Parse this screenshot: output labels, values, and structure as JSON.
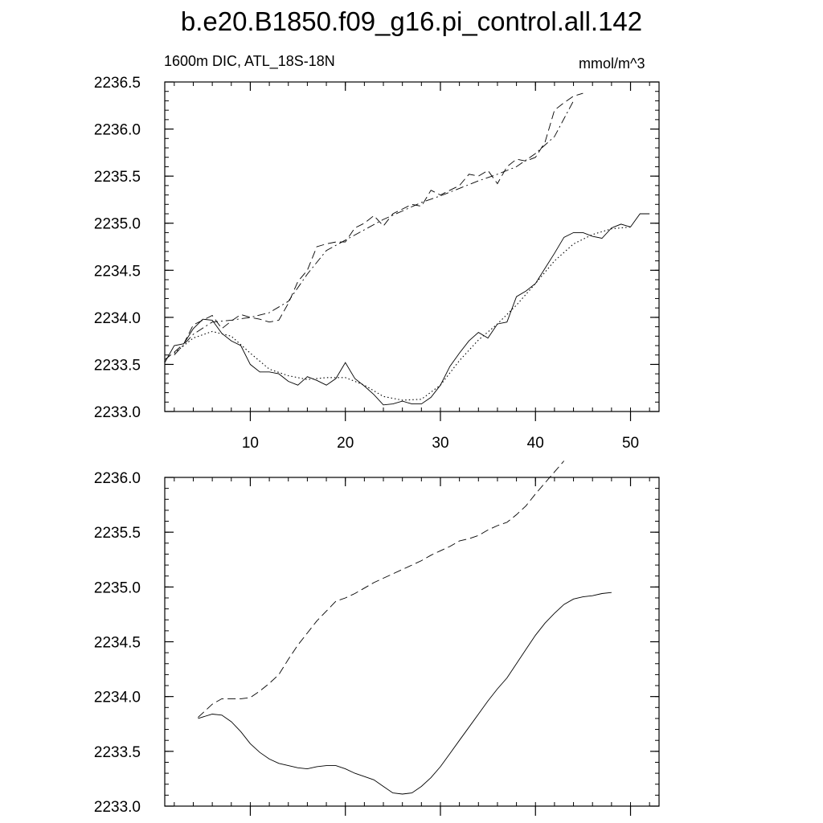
{
  "title": "b.e20.B1850.f09_g16.pi_control.all.142",
  "left_label": "1600m DIC, ATL_18S-18N",
  "right_label": "mmol/m^3",
  "chart_data": [
    {
      "type": "line",
      "panel": "top",
      "xlim": [
        1,
        53
      ],
      "ylim": [
        2233.0,
        2236.5
      ],
      "xticks": [
        10,
        20,
        30,
        40,
        50
      ],
      "yticks": [
        2233.0,
        2233.5,
        2234.0,
        2234.5,
        2235.0,
        2235.5,
        2236.0,
        2236.5
      ],
      "ytick_labels": [
        "2233.0",
        "2233.5",
        "2234.0",
        "2234.5",
        "2235.0",
        "2235.5",
        "2236.0",
        "2236.5"
      ],
      "series": [
        {
          "name": "solid",
          "style": "solid",
          "x": [
            1,
            2,
            3,
            4,
            5,
            6,
            7,
            8,
            9,
            10,
            11,
            12,
            13,
            14,
            15,
            16,
            17,
            18,
            19,
            20,
            21,
            22,
            23,
            24,
            25,
            26,
            27,
            28,
            29,
            30,
            31,
            32,
            33,
            34,
            35,
            36,
            37,
            38,
            39,
            40,
            41,
            42,
            43,
            44,
            45,
            46,
            47,
            48,
            49,
            50,
            51,
            52
          ],
          "y": [
            2233.52,
            2233.7,
            2233.72,
            2233.88,
            2233.98,
            2233.97,
            2233.83,
            2233.75,
            2233.7,
            2233.5,
            2233.42,
            2233.42,
            2233.4,
            2233.32,
            2233.28,
            2233.37,
            2233.33,
            2233.28,
            2233.35,
            2233.52,
            2233.35,
            2233.27,
            2233.18,
            2233.07,
            2233.08,
            2233.11,
            2233.08,
            2233.08,
            2233.15,
            2233.28,
            2233.48,
            2233.62,
            2233.75,
            2233.84,
            2233.78,
            2233.93,
            2233.95,
            2234.22,
            2234.28,
            2234.36,
            2234.52,
            2234.68,
            2234.85,
            2234.9,
            2234.9,
            2234.86,
            2234.84,
            2234.95,
            2234.99,
            2234.96,
            2235.1,
            2235.1
          ]
        },
        {
          "name": "solid-smoothed",
          "style": "dotted",
          "x": [
            2,
            4,
            6,
            8,
            10,
            12,
            14,
            16,
            18,
            20,
            22,
            24,
            26,
            28,
            30,
            32,
            34,
            36,
            38,
            40,
            42,
            44,
            46,
            48,
            50
          ],
          "y": [
            2233.62,
            2233.78,
            2233.85,
            2233.8,
            2233.62,
            2233.45,
            2233.38,
            2233.34,
            2233.36,
            2233.36,
            2233.28,
            2233.16,
            2233.12,
            2233.13,
            2233.28,
            2233.54,
            2233.76,
            2233.93,
            2234.13,
            2234.36,
            2234.6,
            2234.78,
            2234.88,
            2234.94,
            2234.96
          ]
        },
        {
          "name": "dashed",
          "style": "dashed",
          "x": [
            1,
            2,
            3,
            4,
            5,
            6,
            7,
            8,
            9,
            10,
            11,
            12,
            13,
            14,
            15,
            16,
            17,
            18,
            19,
            20,
            21,
            22,
            23,
            24,
            25,
            26,
            27,
            28,
            29,
            30,
            31,
            32,
            33,
            34,
            35,
            36,
            37,
            38,
            39,
            40,
            41,
            42,
            43,
            44,
            45
          ],
          "y": [
            2233.55,
            2233.63,
            2233.72,
            2233.92,
            2233.97,
            2234.02,
            2233.88,
            2233.96,
            2234.03,
            2234.0,
            2233.98,
            2233.95,
            2233.97,
            2234.15,
            2234.38,
            2234.5,
            2234.75,
            2234.78,
            2234.8,
            2234.8,
            2234.95,
            2235.0,
            2235.08,
            2234.97,
            2235.1,
            2235.15,
            2235.2,
            2235.18,
            2235.35,
            2235.3,
            2235.35,
            2235.4,
            2235.52,
            2235.5,
            2235.56,
            2235.42,
            2235.6,
            2235.68,
            2235.66,
            2235.7,
            2235.86,
            2236.2,
            2236.28,
            2236.35,
            2236.38
          ]
        },
        {
          "name": "dashed-smoothed",
          "style": "dash-dot",
          "x": [
            2,
            4,
            6,
            8,
            10,
            12,
            14,
            16,
            18,
            20,
            22,
            24,
            26,
            28,
            30,
            32,
            34,
            36,
            38,
            40,
            42,
            44
          ],
          "y": [
            2233.6,
            2233.82,
            2233.95,
            2233.97,
            2234.0,
            2234.05,
            2234.17,
            2234.46,
            2234.71,
            2234.82,
            2234.93,
            2235.04,
            2235.13,
            2235.22,
            2235.29,
            2235.37,
            2235.45,
            2235.52,
            2235.6,
            2235.74,
            2235.92,
            2236.3
          ]
        }
      ]
    },
    {
      "type": "line",
      "panel": "bottom",
      "xlim": [
        1,
        53
      ],
      "ylim": [
        2233.0,
        2236.0
      ],
      "xticks": [
        10,
        20,
        30,
        40,
        50
      ],
      "yticks": [
        2233.0,
        2233.5,
        2234.0,
        2234.5,
        2235.0,
        2235.5,
        2236.0
      ],
      "ytick_labels": [
        "2233.0",
        "2233.5",
        "2234.0",
        "2234.5",
        "2235.0",
        "2235.5",
        "2236.0"
      ],
      "series": [
        {
          "name": "solid",
          "style": "solid",
          "x": [
            4.5,
            6,
            7,
            8,
            9,
            10,
            11,
            12,
            13,
            14,
            15,
            16,
            17,
            18,
            19,
            20,
            21,
            22,
            23,
            24,
            25,
            26,
            27,
            28,
            29,
            30,
            31,
            32,
            33,
            34,
            35,
            36,
            37,
            38,
            39,
            40,
            41,
            42,
            43,
            44,
            45,
            46,
            47,
            48
          ],
          "y": [
            2233.8,
            2233.84,
            2233.83,
            2233.77,
            2233.68,
            2233.57,
            2233.49,
            2233.43,
            2233.39,
            2233.37,
            2233.35,
            2233.34,
            2233.36,
            2233.37,
            2233.37,
            2233.34,
            2233.3,
            2233.27,
            2233.24,
            2233.18,
            2233.12,
            2233.11,
            2233.12,
            2233.18,
            2233.26,
            2233.36,
            2233.48,
            2233.6,
            2233.72,
            2233.84,
            2233.96,
            2234.07,
            2234.17,
            2234.3,
            2234.43,
            2234.56,
            2234.67,
            2234.76,
            2234.84,
            2234.89,
            2234.91,
            2234.92,
            2234.94,
            2234.95
          ]
        },
        {
          "name": "dashed",
          "style": "dashed",
          "x": [
            4.5,
            6,
            7,
            8,
            9,
            10,
            11,
            12,
            13,
            14,
            15,
            16,
            17,
            18,
            19,
            20,
            21,
            22,
            23,
            24,
            25,
            26,
            27,
            28,
            29,
            30,
            31,
            32,
            33,
            34,
            35,
            36,
            37,
            38,
            39,
            40,
            41,
            42,
            43
          ],
          "y": [
            2233.81,
            2233.93,
            2233.98,
            2233.98,
            2233.98,
            2233.99,
            2234.05,
            2234.12,
            2234.2,
            2234.34,
            2234.47,
            2234.58,
            2234.69,
            2234.78,
            2234.87,
            2234.9,
            2234.94,
            2234.99,
            2235.04,
            2235.08,
            2235.12,
            2235.16,
            2235.2,
            2235.24,
            2235.29,
            2235.33,
            2235.37,
            2235.42,
            2235.44,
            2235.47,
            2235.52,
            2235.56,
            2235.59,
            2235.66,
            2235.74,
            2235.85,
            2235.95,
            2236.05,
            2236.15
          ]
        }
      ]
    }
  ]
}
